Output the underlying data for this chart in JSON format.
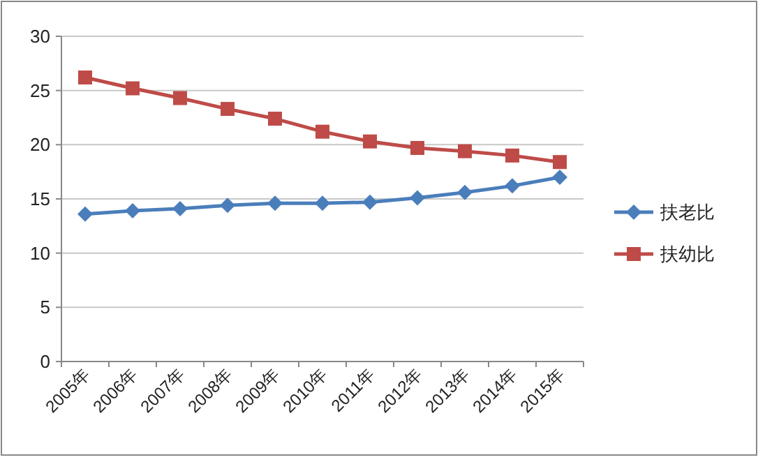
{
  "chart_data": {
    "type": "line",
    "categories": [
      "2005年",
      "2006年",
      "2007年",
      "2008年",
      "2009年",
      "2010年",
      "2011年",
      "2012年",
      "2013年",
      "2014年",
      "2015年"
    ],
    "series": [
      {
        "name": "扶老比",
        "color": "#4a7ebb",
        "marker": "diamond",
        "values": [
          13.6,
          13.9,
          14.1,
          14.4,
          14.6,
          14.6,
          14.7,
          15.1,
          15.6,
          16.2,
          17.0
        ]
      },
      {
        "name": "扶幼比",
        "color": "#be4b48",
        "marker": "square",
        "values": [
          26.2,
          25.2,
          24.3,
          23.3,
          22.4,
          21.2,
          20.3,
          19.7,
          19.4,
          19.0,
          18.4
        ]
      }
    ],
    "ylim": [
      0,
      30
    ],
    "yticks": [
      0,
      5,
      10,
      15,
      20,
      25,
      30
    ],
    "grid": "y",
    "legend": "right"
  }
}
